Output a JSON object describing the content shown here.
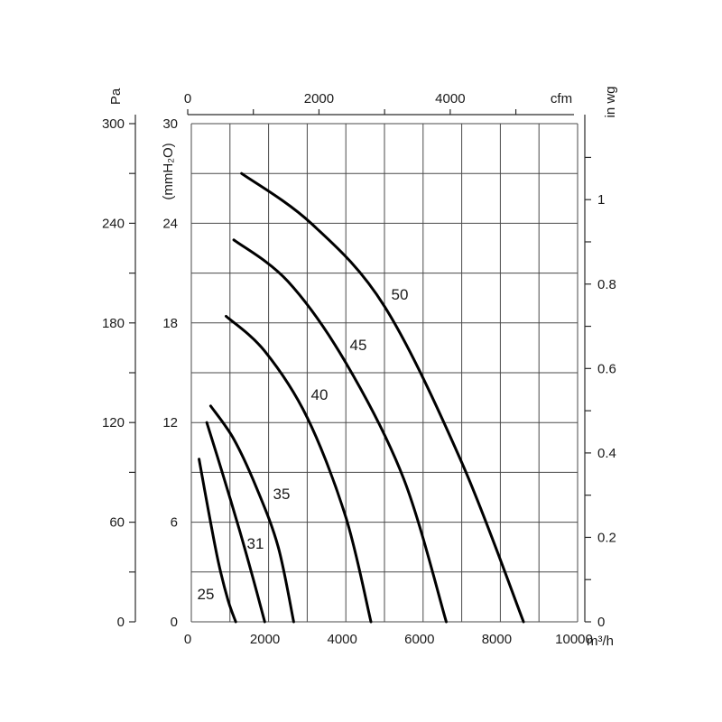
{
  "chart_data": {
    "type": "line",
    "title": "",
    "x_axis": {
      "label": "m³/h",
      "range": [
        0,
        10000
      ],
      "ticks": [
        "0",
        "2000",
        "4000",
        "6000",
        "8000",
        "10000"
      ]
    },
    "x_axis_top": {
      "label": "cfm",
      "range": [
        0,
        5886
      ],
      "ticks": [
        "0",
        "2000",
        "4000"
      ]
    },
    "y_axis_inner": {
      "label": "(mmH₂O)",
      "range": [
        0,
        30
      ],
      "ticks": [
        "0",
        "6",
        "12",
        "18",
        "24",
        "30"
      ]
    },
    "y_axis_outer": {
      "label": "Pa",
      "range": [
        0,
        300
      ],
      "ticks": [
        "0",
        "60",
        "120",
        "180",
        "240",
        "300"
      ]
    },
    "y_axis_right": {
      "label": "in wg",
      "range": [
        0,
        1.18
      ],
      "ticks": [
        "0",
        "0.2",
        "0.4",
        "0.6",
        "0.8",
        "1"
      ]
    },
    "series": [
      {
        "name": "25",
        "points": [
          [
            200,
            9.8
          ],
          [
            450,
            6.6
          ],
          [
            700,
            3.6
          ],
          [
            950,
            1.3
          ],
          [
            1150,
            0
          ]
        ]
      },
      {
        "name": "31",
        "points": [
          [
            400,
            12.0
          ],
          [
            800,
            9.0
          ],
          [
            1250,
            5.5
          ],
          [
            1600,
            2.6
          ],
          [
            1900,
            0
          ]
        ]
      },
      {
        "name": "35",
        "points": [
          [
            500,
            13.0
          ],
          [
            1100,
            11.0
          ],
          [
            1700,
            8.0
          ],
          [
            2250,
            4.5
          ],
          [
            2650,
            0
          ]
        ]
      },
      {
        "name": "40",
        "points": [
          [
            900,
            18.4
          ],
          [
            1900,
            16.3
          ],
          [
            3000,
            12.3
          ],
          [
            4000,
            6.3
          ],
          [
            4650,
            0
          ]
        ]
      },
      {
        "name": "45",
        "points": [
          [
            1100,
            23.0
          ],
          [
            2500,
            20.5
          ],
          [
            4000,
            15.6
          ],
          [
            5500,
            8.6
          ],
          [
            6600,
            0
          ]
        ]
      },
      {
        "name": "50",
        "points": [
          [
            1300,
            27.0
          ],
          [
            3100,
            24.0
          ],
          [
            5000,
            19.0
          ],
          [
            7000,
            9.6
          ],
          [
            8600,
            0
          ]
        ]
      }
    ]
  }
}
